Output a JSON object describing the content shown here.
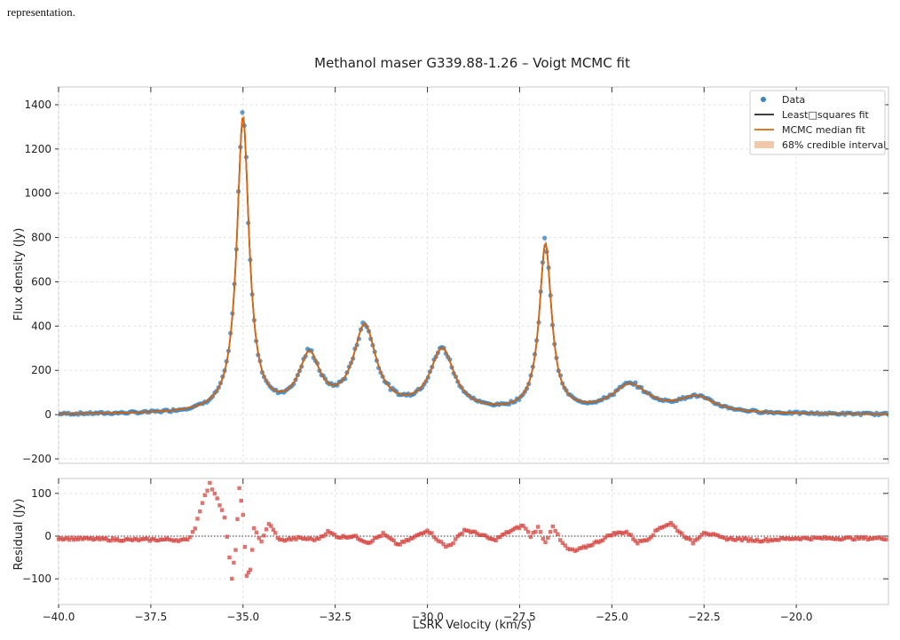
{
  "page": {
    "caption_fragment": "representation."
  },
  "chart_data": [
    {
      "type": "scatter",
      "title": "Methanol maser G339.88-1.26 – Voigt MCMC fit",
      "xlabel": "",
      "ylabel": "Flux density (Jy)",
      "xlim": [
        -40.0,
        -17.5
      ],
      "ylim": [
        -220,
        1480
      ],
      "grid": true,
      "legend_position": "top-right",
      "x_ticks": [
        -40.0,
        -37.5,
        -35.0,
        -32.5,
        -30.0,
        -27.5,
        -25.0,
        -22.5,
        -20.0
      ],
      "y_ticks": [
        -200,
        0,
        200,
        400,
        600,
        800,
        1000,
        1200,
        1400
      ],
      "y_tick_labels": [
        "−200",
        "0",
        "200",
        "400",
        "600",
        "800",
        "1000",
        "1200",
        "1400"
      ],
      "legend": [
        "Data",
        "Least□squares fit",
        "MCMC median fit",
        "68% credible interval"
      ],
      "components": [
        {
          "center": -35.0,
          "amplitude": 1330,
          "width": 0.2
        },
        {
          "center": -33.2,
          "amplitude": 245,
          "width": 0.35
        },
        {
          "center": -31.7,
          "amplitude": 380,
          "width": 0.38
        },
        {
          "center": -29.6,
          "amplitude": 280,
          "width": 0.4
        },
        {
          "center": -26.8,
          "amplitude": 755,
          "width": 0.2
        },
        {
          "center": -24.5,
          "amplitude": 125,
          "width": 0.6
        },
        {
          "center": -22.7,
          "amplitude": 70,
          "width": 0.6
        }
      ],
      "series": [
        {
          "name": "Data",
          "color": "#3b84c0",
          "marker": "circle"
        },
        {
          "name": "Least□squares fit",
          "color": "#000000",
          "style": "line"
        },
        {
          "name": "MCMC median fit",
          "color": "#d9660f",
          "style": "line"
        },
        {
          "name": "68% credible interval",
          "color": "#f2c9a8",
          "style": "band"
        }
      ]
    },
    {
      "type": "scatter",
      "title": "",
      "xlabel": "LSRK Velocity (km/s)",
      "ylabel": "Residual (Jy)",
      "xlim": [
        -40.0,
        -17.5
      ],
      "ylim": [
        -160,
        135
      ],
      "grid": true,
      "x_ticks": [
        -40.0,
        -37.5,
        -35.0,
        -32.5,
        -30.0,
        -27.5,
        -25.0,
        -22.5,
        -20.0
      ],
      "x_tick_labels": [
        "−40.0",
        "−37.5",
        "−35.0",
        "−32.5",
        "−30.0",
        "−27.5",
        "−25.0",
        "−22.5",
        "−20.0"
      ],
      "y_ticks": [
        -100,
        0,
        100
      ],
      "y_tick_labels": [
        "−100",
        "0",
        "100"
      ],
      "series": [
        {
          "name": "",
          "color": "#d64541",
          "marker": "square",
          "x": [
            -40.0,
            -39.0,
            -38.0,
            -37.0,
            -36.5,
            -36.3,
            -36.1,
            -35.9,
            -35.7,
            -35.5,
            -35.3,
            -35.2,
            -35.1,
            -35.0,
            -34.9,
            -34.8,
            -34.7,
            -34.5,
            -34.3,
            -34.0,
            -33.5,
            -33.0,
            -32.7,
            -32.4,
            -32.0,
            -31.6,
            -31.2,
            -30.8,
            -30.4,
            -30.0,
            -29.7,
            -29.5,
            -29.3,
            -29.0,
            -28.6,
            -28.2,
            -27.8,
            -27.4,
            -27.2,
            -27.0,
            -26.8,
            -26.6,
            -26.4,
            -26.2,
            -26.0,
            -25.7,
            -25.3,
            -25.0,
            -24.6,
            -24.3,
            -24.0,
            -23.7,
            -23.4,
            -23.1,
            -22.8,
            -22.5,
            -22.0,
            -21.0,
            -20.0,
            -19.0,
            -18.0,
            -17.5
          ],
          "y": [
            -5,
            -7,
            -9,
            -8,
            -10,
            20,
            80,
            122,
            90,
            45,
            -100,
            -30,
            110,
            50,
            -95,
            -80,
            20,
            -15,
            30,
            -10,
            -5,
            -8,
            10,
            -2,
            0,
            -15,
            5,
            -20,
            -5,
            15,
            -10,
            -25,
            -15,
            15,
            5,
            -10,
            10,
            25,
            0,
            20,
            -15,
            25,
            -10,
            -30,
            -35,
            -25,
            -10,
            5,
            10,
            -15,
            -5,
            20,
            30,
            5,
            -15,
            10,
            -5,
            -10,
            -5,
            -5,
            -5,
            -5
          ]
        }
      ]
    }
  ]
}
